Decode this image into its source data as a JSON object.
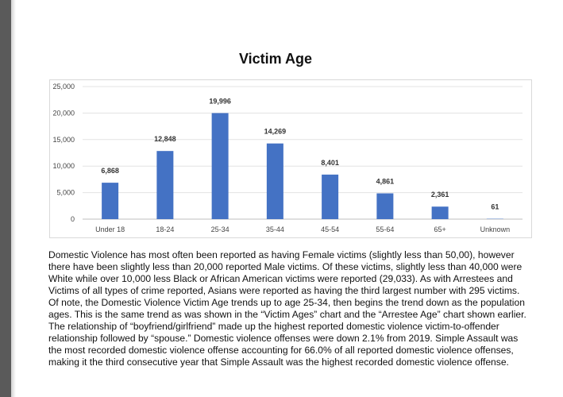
{
  "chart_data": {
    "type": "bar",
    "title": "Victim Age",
    "xlabel": "",
    "ylabel": "",
    "categories": [
      "Under 18",
      "18-24",
      "25-34",
      "35-44",
      "45-54",
      "55-64",
      "65+",
      "Unknown"
    ],
    "values": [
      6868,
      12848,
      19996,
      14269,
      8401,
      4861,
      2361,
      61
    ],
    "value_labels": [
      "6,868",
      "12,848",
      "19,996",
      "14,269",
      "8,401",
      "4,861",
      "2,361",
      "61"
    ],
    "yticks": [
      0,
      5000,
      10000,
      15000,
      20000,
      25000
    ],
    "ytick_labels": [
      "0",
      "5,000",
      "10,000",
      "15,000",
      "20,000",
      "25,000"
    ],
    "ylim": [
      0,
      25000
    ],
    "grid": true,
    "legend": "none",
    "bar_color": "#4472c4"
  },
  "body": {
    "paragraph": "Domestic Violence has most often been reported as having Female victims (slightly less than 50,00), however there have been slightly less than 20,000 reported Male victims.  Of these victims, slightly less than 40,000 were White while over 10,000 less Black or African American victims were reported (29,033).  As with Arrestees and Victims of all types of crime reported, Asians were reported as having the third largest number with 295 victims.  Of note, the Domestic Violence Victim Age trends up to age 25-34, then begins the trend down as the population ages.  This is the same trend as was shown in the “Victim Ages” chart and the “Arrestee Age” chart shown earlier.  The relationship of “boyfriend/girlfriend” made up the highest reported domestic violence victim-to-offender relationship followed by “spouse.” Domestic violence offenses were down 2.1% from 2019. Simple Assault was the most recorded domestic violence offense accounting for 66.0% of all reported domestic violence offenses, making it the third consecutive year that Simple Assault was the highest recorded domestic violence offense."
  }
}
